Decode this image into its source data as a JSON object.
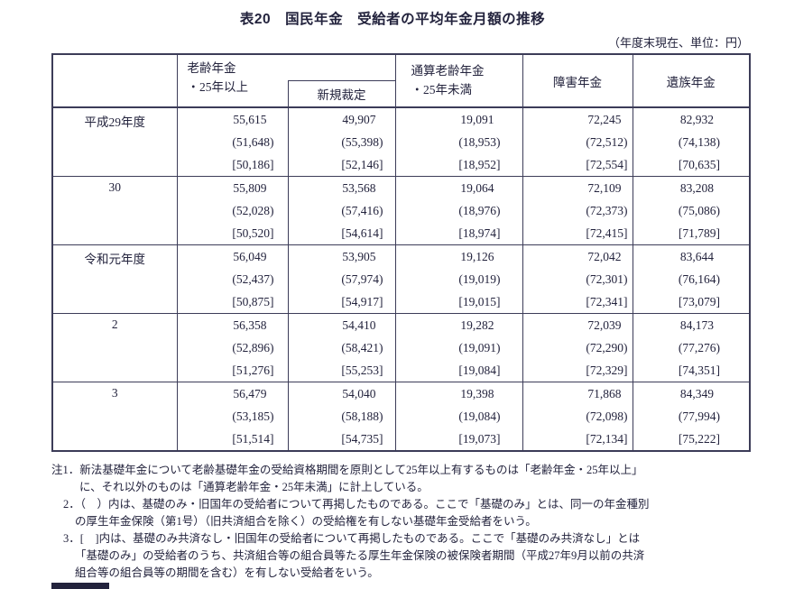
{
  "title": "表20　国民年金　受給者の平均年金月額の推移",
  "unit_note": "（年度末現在、単位：円）",
  "colors": {
    "ink": "#23233d",
    "border": "#3c3c58",
    "background": "#ffffff"
  },
  "table": {
    "headers": {
      "row_label": "",
      "old_age": "老齢年金\n・25年以上",
      "old_age_new": "新規裁定",
      "pro_rated_old_age": "通算老齢年金\n・25年未満",
      "disability": "障害年金",
      "survivor": "遺族年金"
    },
    "row_groups": [
      {
        "label": "平成29年度",
        "rows": [
          [
            "55,615",
            "49,907",
            "19,091",
            "72,245",
            "82,932"
          ],
          [
            "(51,648)",
            "(55,398)",
            "(18,953)",
            "(72,512)",
            "(74,138)"
          ],
          [
            "[50,186]",
            "[52,146]",
            "[18,952]",
            "[72,554]",
            "[70,635]"
          ]
        ]
      },
      {
        "label": "30",
        "rows": [
          [
            "55,809",
            "53,568",
            "19,064",
            "72,109",
            "83,208"
          ],
          [
            "(52,028)",
            "(57,416)",
            "(18,976)",
            "(72,373)",
            "(75,086)"
          ],
          [
            "[50,520]",
            "[54,614]",
            "[18,974]",
            "[72,415]",
            "[71,789]"
          ]
        ]
      },
      {
        "label": "令和元年度",
        "rows": [
          [
            "56,049",
            "53,905",
            "19,126",
            "72,042",
            "83,644"
          ],
          [
            "(52,437)",
            "(57,974)",
            "(19,019)",
            "(72,301)",
            "(76,164)"
          ],
          [
            "[50,875]",
            "[54,917]",
            "[19,015]",
            "[72,341]",
            "[73,079]"
          ]
        ]
      },
      {
        "label": "2",
        "rows": [
          [
            "56,358",
            "54,410",
            "19,282",
            "72,039",
            "84,173"
          ],
          [
            "(52,896)",
            "(58,421)",
            "(19,091)",
            "(72,290)",
            "(77,276)"
          ],
          [
            "[51,276]",
            "[55,253]",
            "[19,084]",
            "[72,329]",
            "[74,351]"
          ]
        ]
      },
      {
        "label": "3",
        "rows": [
          [
            "56,479",
            "54,040",
            "19,398",
            "71,868",
            "84,349"
          ],
          [
            "(53,185)",
            "(58,188)",
            "(19,084)",
            "(72,098)",
            "(77,994)"
          ],
          [
            "[51,514]",
            "[54,735]",
            "[19,073]",
            "[72,134]",
            "[75,222]"
          ]
        ]
      }
    ]
  },
  "notes": [
    {
      "lines": [
        "注1．新法基礎年金について老齢基礎年金の受給資格期間を原則として25年以上有するものは「老齢年金・25年以上」",
        "に、それ以外のものは「通算老齢年金・25年未満」に計上している。"
      ]
    },
    {
      "lines": [
        "2．（　）内は、基礎のみ・旧国年の受給者について再掲したものである。ここで「基礎のみ」とは、同一の年金種別",
        "の厚生年金保険（第1号）（旧共済組合を除く）の受給権を有しない基礎年金受給者をいう。"
      ]
    },
    {
      "lines": [
        "3．[　]内は、基礎のみ共済なし・旧国年の受給者について再掲したものである。ここで「基礎のみ共済なし」とは",
        "「基礎のみ」の受給者のうち、共済組合等の組合員等たる厚生年金保険の被保険者期間（平成27年9月以前の共済",
        "組合等の組合員等の期間を含む）を有しない受給者をいう。"
      ]
    }
  ]
}
